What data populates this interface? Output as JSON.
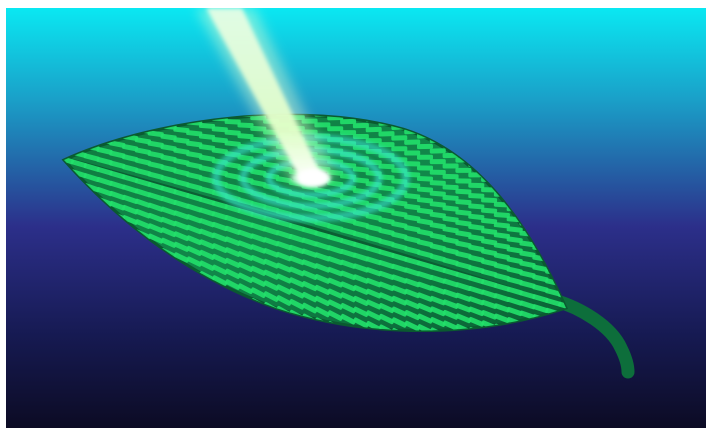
{
  "scene": {
    "subject": "leaf-illuminated-by-light-beam",
    "colors": {
      "sky_top": "#0ae8f2",
      "sky_mid": "#2b3b92",
      "sky_bottom": "#0c0b24",
      "leaf_dark": "#0b6b3a",
      "leaf_mid": "#14934c",
      "cell_green": "#22e06a",
      "beam": "#e8ffd8",
      "ripple": "#36e0d8"
    }
  }
}
